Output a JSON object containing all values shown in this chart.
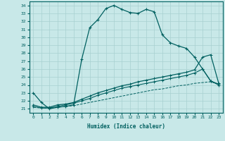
{
  "xlabel": "Humidex (Indice chaleur)",
  "xlim": [
    -0.5,
    23.5
  ],
  "ylim": [
    20.5,
    34.5
  ],
  "xticks": [
    0,
    1,
    2,
    3,
    4,
    5,
    6,
    7,
    8,
    9,
    10,
    11,
    12,
    13,
    14,
    15,
    16,
    17,
    18,
    19,
    20,
    21,
    22,
    23
  ],
  "yticks": [
    21,
    22,
    23,
    24,
    25,
    26,
    27,
    28,
    29,
    30,
    31,
    32,
    33,
    34
  ],
  "background_color": "#c8e8e8",
  "grid_color": "#a8d0d0",
  "line_color": "#006060",
  "curve1_x": [
    0,
    1,
    2,
    3,
    4,
    5,
    6,
    7,
    8,
    9,
    10,
    11,
    12,
    13,
    14,
    15,
    16,
    17,
    18,
    19,
    20,
    21,
    22,
    23
  ],
  "curve1_y": [
    23.0,
    21.8,
    21.0,
    21.2,
    21.3,
    21.5,
    27.2,
    31.2,
    32.2,
    33.6,
    34.0,
    33.5,
    33.1,
    33.0,
    33.5,
    33.2,
    30.3,
    29.3,
    28.9,
    28.6,
    27.5,
    26.0,
    24.5,
    24.0
  ],
  "curve2_x": [
    0,
    1,
    2,
    3,
    4,
    5,
    6,
    7,
    8,
    9,
    10,
    11,
    12,
    13,
    14,
    15,
    16,
    17,
    18,
    19,
    20,
    21,
    22,
    23
  ],
  "curve2_y": [
    21.5,
    21.2,
    21.2,
    21.5,
    21.6,
    21.8,
    22.2,
    22.6,
    23.0,
    23.3,
    23.6,
    23.9,
    24.1,
    24.4,
    24.6,
    24.8,
    25.0,
    25.2,
    25.4,
    25.6,
    25.9,
    27.5,
    27.8,
    24.2
  ],
  "curve3_x": [
    0,
    1,
    2,
    3,
    4,
    5,
    6,
    7,
    8,
    9,
    10,
    11,
    12,
    13,
    14,
    15,
    16,
    17,
    18,
    19,
    20,
    21,
    22,
    23
  ],
  "curve3_y": [
    21.3,
    21.1,
    21.1,
    21.3,
    21.5,
    21.7,
    22.0,
    22.3,
    22.7,
    23.0,
    23.3,
    23.6,
    23.8,
    24.0,
    24.2,
    24.4,
    24.6,
    24.8,
    25.0,
    25.2,
    25.5,
    26.0,
    24.5,
    24.1
  ],
  "curve4_x": [
    0,
    1,
    2,
    3,
    4,
    5,
    6,
    7,
    8,
    9,
    10,
    11,
    12,
    13,
    14,
    15,
    16,
    17,
    18,
    19,
    20,
    21,
    22,
    23
  ],
  "curve4_y": [
    21.2,
    21.1,
    21.1,
    21.2,
    21.3,
    21.4,
    21.6,
    21.8,
    22.0,
    22.2,
    22.4,
    22.6,
    22.8,
    23.0,
    23.2,
    23.4,
    23.5,
    23.7,
    23.9,
    24.0,
    24.2,
    24.3,
    24.4,
    24.1
  ],
  "figsize": [
    3.2,
    2.0
  ],
  "dpi": 100
}
